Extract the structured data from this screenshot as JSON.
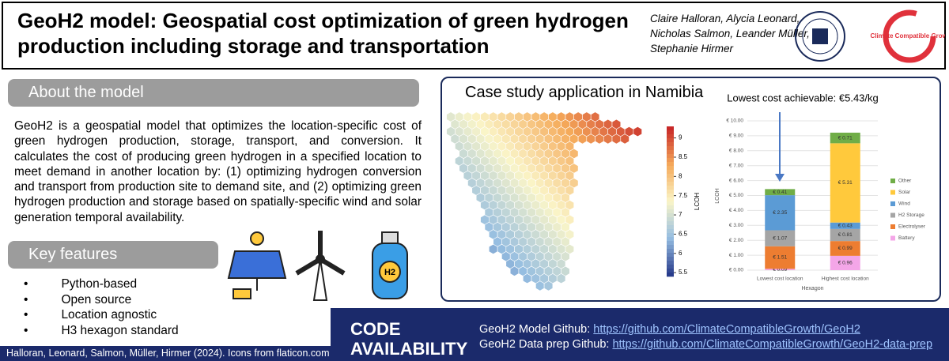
{
  "header": {
    "title": "GeoH2 model: Geospatial cost optimization of green hydrogen production including storage and transportation",
    "authors": [
      "Claire Halloran, Alycia Leonard,",
      "Nicholas Salmon, Leander Müller,",
      "Stephanie Hirmer"
    ],
    "logo_text": "Climate Compatible Growth"
  },
  "about": {
    "heading": "About the model",
    "text": "GeoH2 is a geospatial model that optimizes the location-specific cost of green hydrogen production, storage, transport, and conversion. It calculates the cost of producing green hydrogen in a specified location to meet demand in another location by: (1) optimizing hydrogen conversion and transport from production site to demand site, and (2) optimizing green hydrogen production and storage based on spatially-specific wind and solar generation temporal availability."
  },
  "features": {
    "heading": "Key features",
    "items": [
      "Python-based",
      "Open source",
      "Location agnostic",
      "H3 hexagon standard"
    ]
  },
  "case_study": {
    "title": "Case study application in Namibia",
    "colorbar_label": "LCOH",
    "colorbar_ticks": [
      5.5,
      6.0,
      6.5,
      7.0,
      7.5,
      8.0,
      8.5,
      9.0
    ],
    "colorbar_lim": [
      5.4,
      9.3
    ]
  },
  "chart_data": {
    "type": "stacked_bar",
    "annotation": "Lowest cost achievable: €5.43/kg",
    "categories": [
      "Lowest cost location",
      "Highest cost location"
    ],
    "x_label": "Hexagon",
    "y_label": "LCOH",
    "ylim": [
      0,
      10
    ],
    "yticks": [
      {
        "value": 0,
        "label": "€ 0.00"
      },
      {
        "value": 1,
        "label": "€ 1.00"
      },
      {
        "value": 2,
        "label": "€ 2.00"
      },
      {
        "value": 3,
        "label": "€ 3.00"
      },
      {
        "value": 4,
        "label": "€ 4.00"
      },
      {
        "value": 5,
        "label": "€ 5.00"
      },
      {
        "value": 6,
        "label": "€ 6.00"
      },
      {
        "value": 7,
        "label": "€ 7.00"
      },
      {
        "value": 8,
        "label": "€ 8.00"
      },
      {
        "value": 9,
        "label": "€ 9.00"
      },
      {
        "value": 10,
        "label": "€ 10.00"
      }
    ],
    "grid": true,
    "series": [
      {
        "name": "Battery",
        "color": "#f4a6e8",
        "values": [
          0.09,
          0.96
        ],
        "value_labels": [
          "€ 0.09",
          "€ 0.96"
        ]
      },
      {
        "name": "Electrolyser",
        "color": "#ed7d31",
        "values": [
          1.51,
          0.99
        ],
        "value_labels": [
          "€ 1.51",
          "€ 0.99"
        ]
      },
      {
        "name": "H2 Storage",
        "color": "#a5a5a5",
        "values": [
          1.07,
          0.81
        ],
        "value_labels": [
          "€ 1.07",
          "€ 0.81"
        ]
      },
      {
        "name": "Wind",
        "color": "#5b9bd5",
        "values": [
          2.35,
          0.43
        ],
        "value_labels": [
          "€ 2.35",
          "€ 0.43"
        ]
      },
      {
        "name": "Solar",
        "color": "#ffc93c",
        "values": [
          0,
          5.31
        ],
        "value_labels": [
          null,
          "€ 5.31"
        ]
      },
      {
        "name": "Other",
        "color": "#70ad47",
        "values": [
          0.41,
          0.71
        ],
        "value_labels": [
          "€ 0.41",
          "€ 0.71"
        ]
      }
    ]
  },
  "code": {
    "heading": "CODE AVAILABILITY",
    "links": [
      {
        "label": "GeoH2 Model Github:",
        "url": "https://github.com/ClimateCompatibleGrowth/GeoH2"
      },
      {
        "label": "GeoH2 Data prep Github:",
        "url": "https://github.com/ClimateCompatibleGrowth/GeoH2-data-prep"
      }
    ]
  },
  "footer": "Halloran, Leonard, Salmon, Müller, Hirmer (2024). Icons from flaticon.com"
}
